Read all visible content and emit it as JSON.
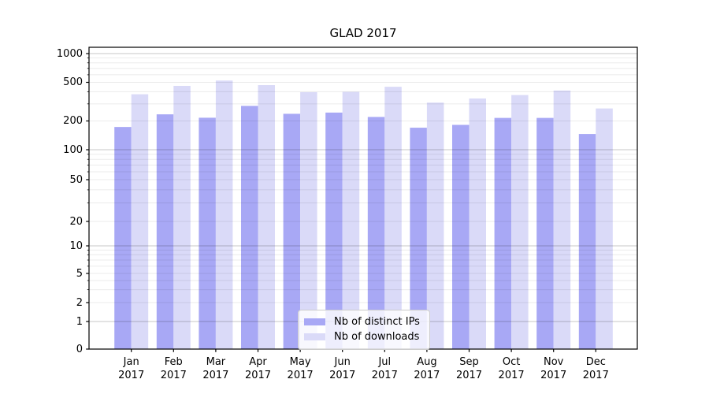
{
  "chart_data": {
    "type": "bar",
    "title": "GLAD 2017",
    "yscale": "symlog",
    "ytick_labels": [
      "0",
      "1",
      "2",
      "5",
      "10",
      "20",
      "50",
      "100",
      "200",
      "500",
      "1000"
    ],
    "ylim": [
      0,
      1100
    ],
    "grid": "on",
    "legend_position": "lower center",
    "categories": [
      "Jan",
      "Feb",
      "Mar",
      "Apr",
      "May",
      "Jun",
      "Jul",
      "Aug",
      "Sep",
      "Oct",
      "Nov",
      "Dec"
    ],
    "x_tick_second_line": "2017",
    "series": [
      {
        "name": "Nb of distinct IPs",
        "color": "#a8a8f5",
        "values": [
          173,
          234,
          216,
          286,
          237,
          244,
          220,
          170,
          182,
          215,
          215,
          146
        ]
      },
      {
        "name": "Nb of downloads",
        "color": "#dadaf8",
        "values": [
          377,
          460,
          522,
          468,
          396,
          399,
          450,
          309,
          341,
          370,
          412,
          269
        ]
      }
    ]
  }
}
